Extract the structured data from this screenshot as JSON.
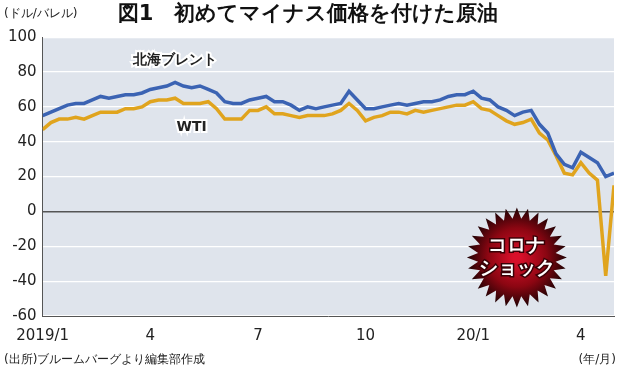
{
  "chart_data": {
    "type": "line",
    "title": "図1　初めてマイナス価格を付けた原油",
    "ylabel": "(ドル/バレル)",
    "xlabel": "(年/月)",
    "source": "(出所)ブルームバーグより編集部作成",
    "annotations": [
      {
        "text": "コロナ\nショック"
      }
    ],
    "categories": [
      "2019/1",
      null,
      null,
      null,
      null,
      null,
      null,
      null,
      null,
      null,
      null,
      null,
      null,
      "4",
      null,
      null,
      null,
      null,
      null,
      null,
      null,
      null,
      null,
      null,
      null,
      null,
      "7",
      null,
      null,
      null,
      null,
      null,
      null,
      null,
      null,
      null,
      null,
      null,
      null,
      "10",
      null,
      null,
      null,
      null,
      null,
      null,
      null,
      null,
      null,
      null,
      null,
      null,
      "20/1",
      null,
      null,
      null,
      null,
      null,
      null,
      null,
      null,
      null,
      null,
      null,
      null,
      "4",
      null,
      null,
      null,
      null
    ],
    "series": [
      {
        "name": "北海ブレント",
        "color": "#3b63b3",
        "values": [
          55,
          57,
          59,
          61,
          62,
          62,
          64,
          66,
          65,
          66,
          67,
          67,
          68,
          70,
          71,
          72,
          74,
          72,
          71,
          72,
          70,
          68,
          63,
          62,
          62,
          64,
          65,
          66,
          63,
          63,
          61,
          58,
          60,
          59,
          60,
          61,
          62,
          69,
          64,
          59,
          59,
          60,
          61,
          62,
          61,
          62,
          63,
          63,
          64,
          66,
          67,
          67,
          69,
          65,
          64,
          60,
          58,
          55,
          57,
          58,
          50,
          45,
          33,
          27,
          25,
          34,
          31,
          28,
          20,
          22
        ]
      },
      {
        "name": "WTI",
        "color": "#e0a41e",
        "values": [
          47,
          51,
          53,
          53,
          54,
          53,
          55,
          57,
          57,
          57,
          59,
          59,
          60,
          63,
          64,
          64,
          65,
          62,
          62,
          62,
          63,
          59,
          53,
          53,
          53,
          58,
          58,
          60,
          56,
          56,
          55,
          54,
          55,
          55,
          55,
          56,
          58,
          62,
          58,
          52,
          54,
          55,
          57,
          57,
          56,
          58,
          57,
          58,
          59,
          60,
          61,
          61,
          63,
          59,
          58,
          55,
          52,
          50,
          51,
          53,
          45,
          41,
          32,
          22,
          21,
          28,
          22,
          18,
          -37,
          15
        ]
      }
    ],
    "ylim": [
      -60,
      100
    ],
    "yticks": [
      -60,
      -40,
      -20,
      0,
      20,
      40,
      60,
      80,
      100
    ],
    "grid": true
  }
}
